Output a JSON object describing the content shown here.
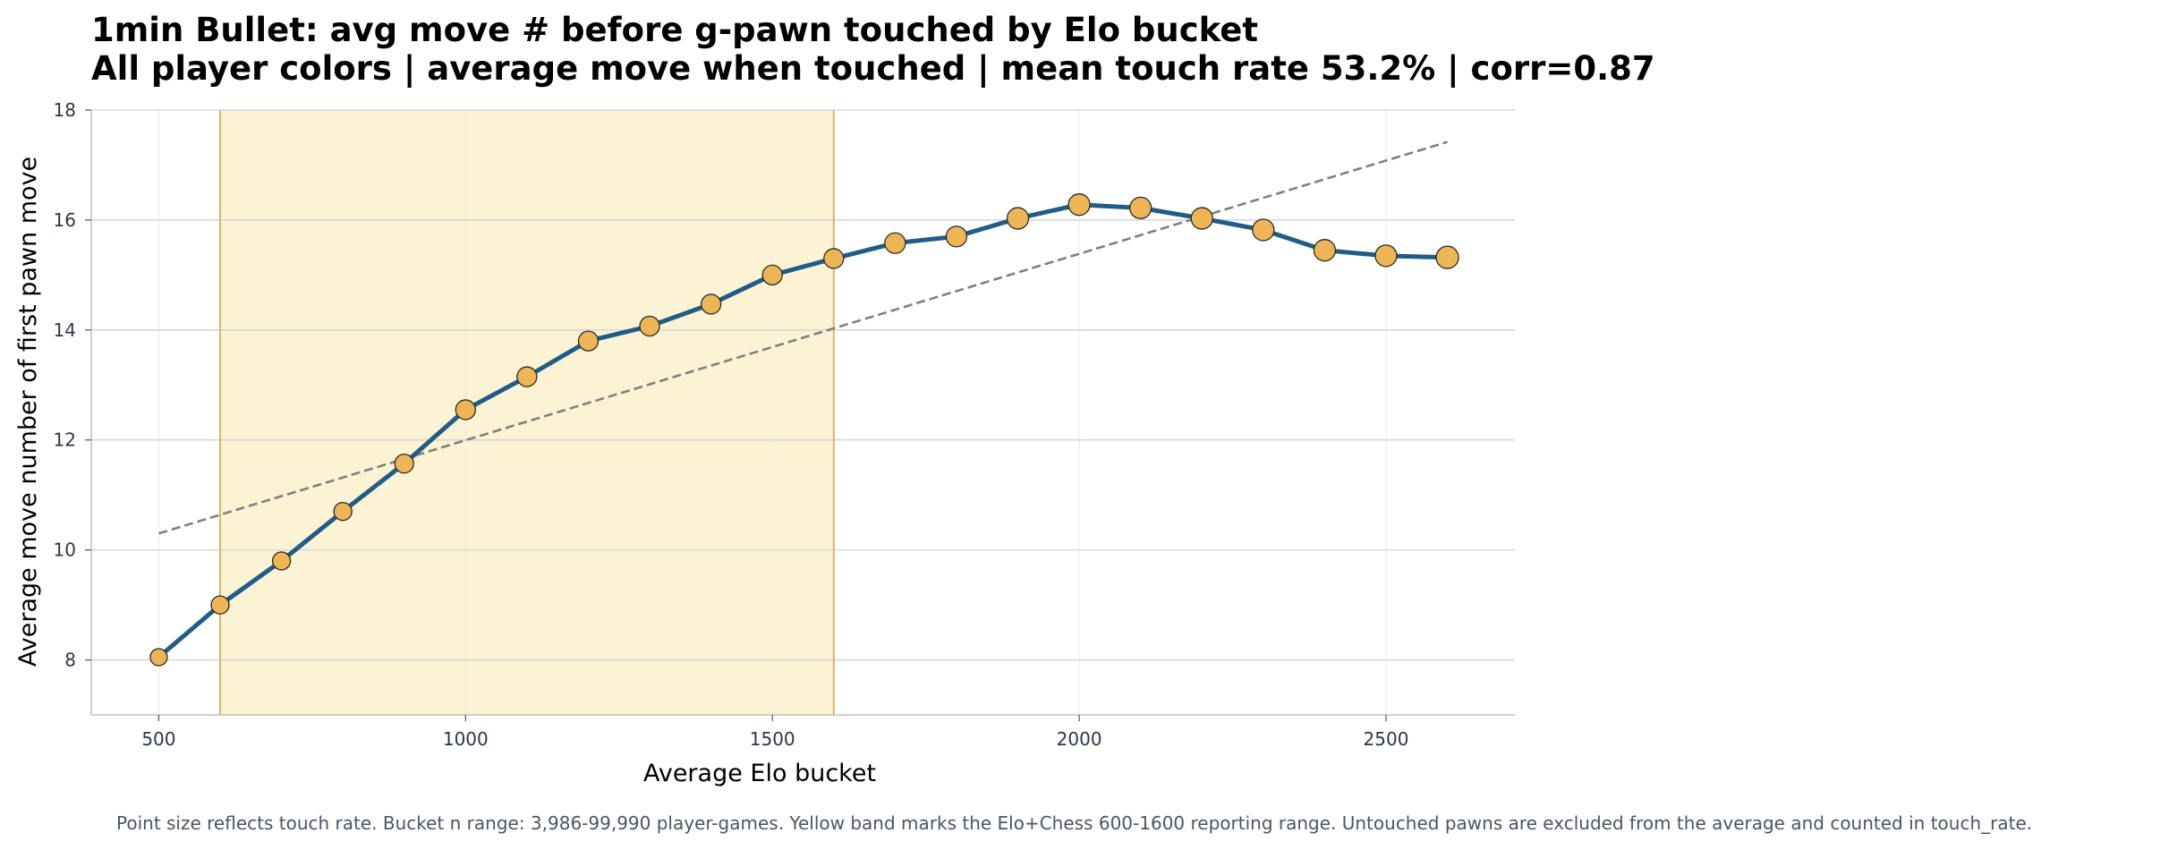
{
  "chart_data": {
    "type": "line",
    "title": "1min Bullet: avg move # before g-pawn touched by Elo bucket",
    "subtitle": "All player colors | average move when touched | mean touch rate 53.2% | corr=0.87",
    "xlabel": "Average Elo bucket",
    "ylabel": "Average move number of first pawn move",
    "xlim": [
      390,
      2710
    ],
    "ylim": [
      7.0,
      18.0
    ],
    "xticks": [
      500,
      1000,
      1500,
      2000,
      2500
    ],
    "yticks": [
      8,
      10,
      12,
      14,
      16,
      18
    ],
    "grid": true,
    "highlight_band": {
      "x_start": 600,
      "x_end": 1600,
      "color": "#fcf2d4",
      "edge_color": "#e0b070"
    },
    "trend_line": {
      "x": [
        500,
        2600
      ],
      "y": [
        10.3,
        17.42
      ],
      "color": "#808080",
      "style": "dashed"
    },
    "series": [
      {
        "color": "#1f5c87",
        "marker_color": "#edb556",
        "x": [
          500,
          600,
          700,
          800,
          900,
          1000,
          1100,
          1200,
          1300,
          1400,
          1500,
          1600,
          1700,
          1800,
          1900,
          2000,
          2100,
          2200,
          2300,
          2400,
          2500,
          2600
        ],
        "y": [
          8.05,
          9.0,
          9.8,
          10.7,
          11.57,
          12.55,
          13.15,
          13.8,
          14.07,
          14.47,
          15.0,
          15.3,
          15.58,
          15.7,
          16.03,
          16.28,
          16.22,
          16.03,
          15.82,
          15.45,
          15.35,
          15.32
        ],
        "touch_rate_marker_size": [
          6.5,
          7.0,
          7.0,
          7.0,
          7.5,
          8.0,
          8.0,
          8.0,
          8.0,
          8.0,
          8.0,
          8.0,
          8.5,
          8.5,
          9.0,
          9.0,
          9.0,
          9.0,
          9.0,
          9.0,
          9.0,
          9.5
        ]
      }
    ],
    "footnote": "Point size reflects touch rate. Bucket n range: 3,986-99,990 player-games. Yellow band marks the Elo+Chess 600-1600 reporting range. Untouched pawns are excluded from the average and counted in touch_rate."
  }
}
